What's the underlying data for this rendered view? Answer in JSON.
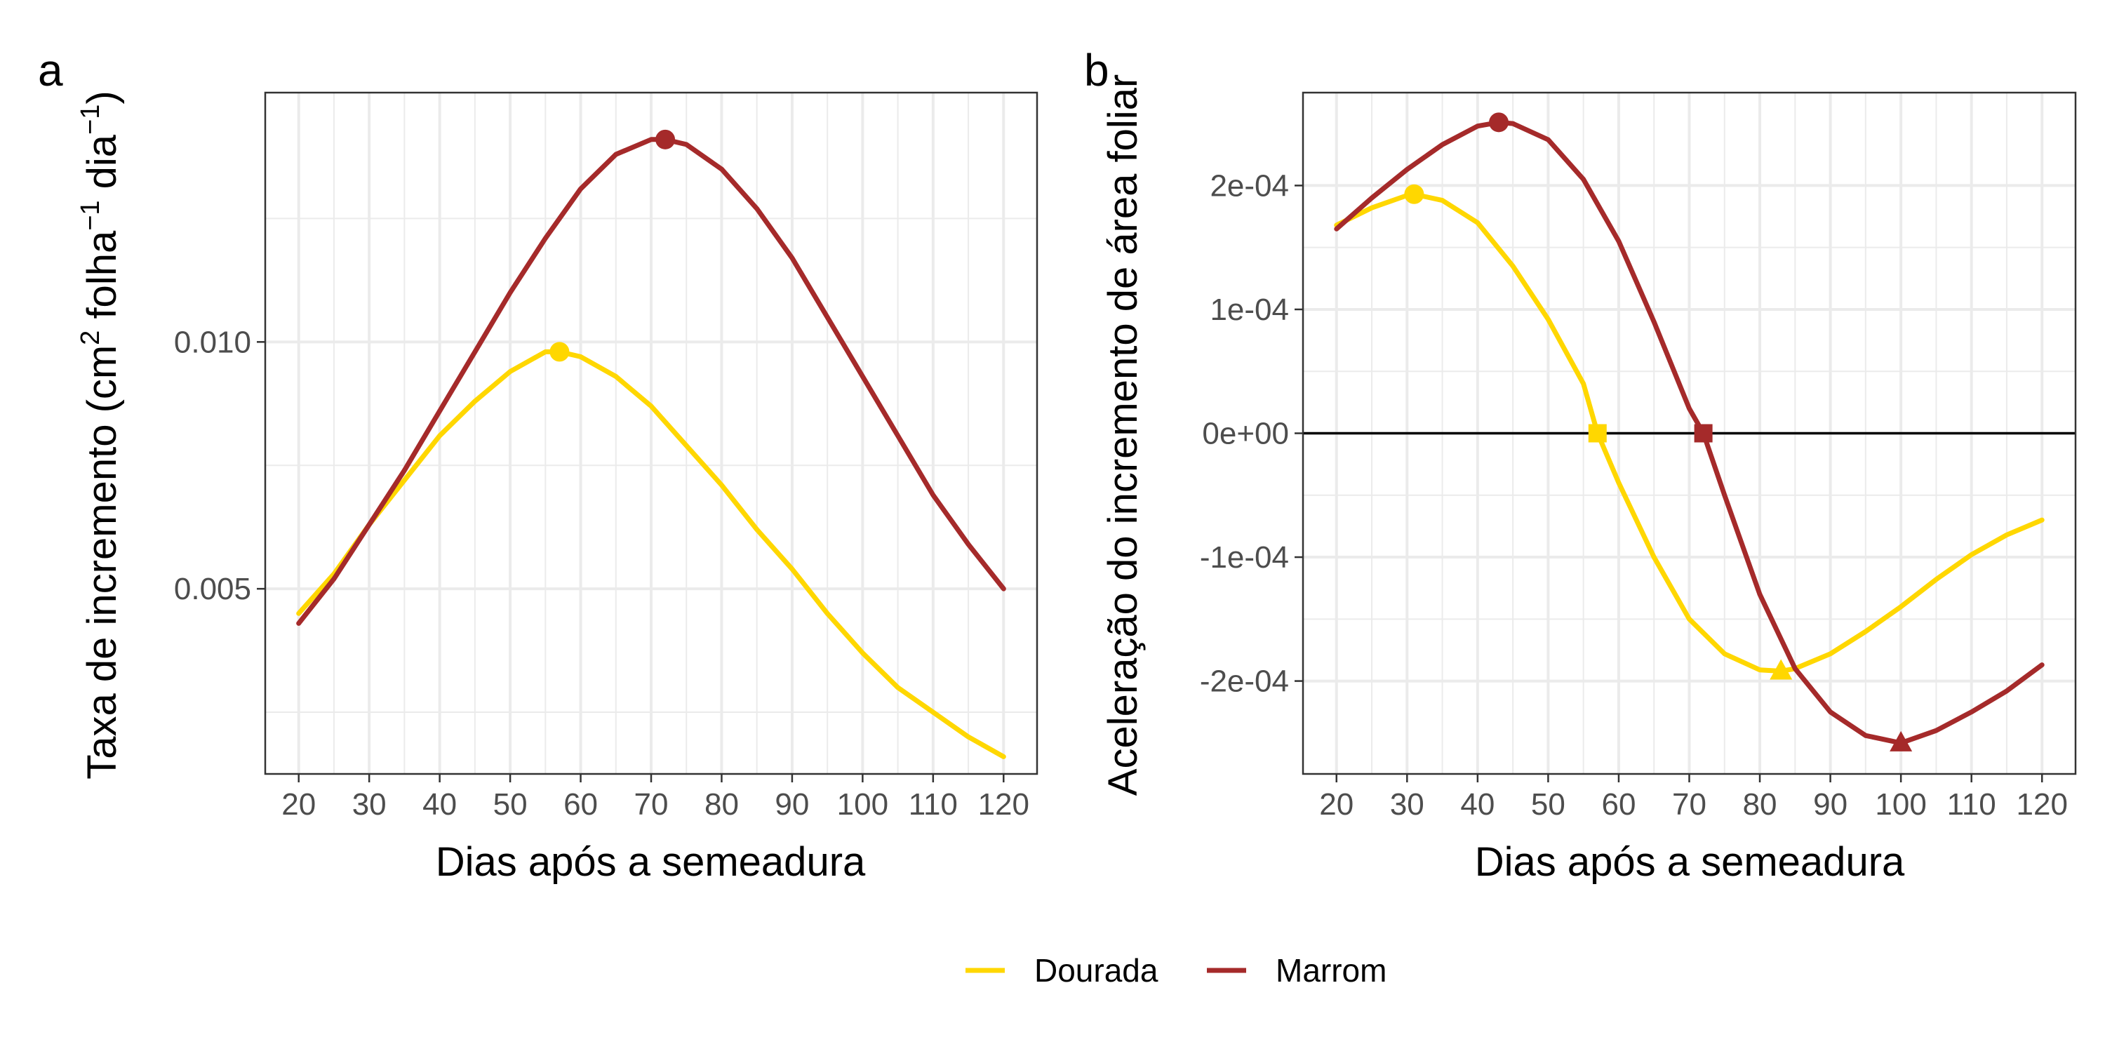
{
  "legend": {
    "items": [
      {
        "label": "Dourada",
        "color": "#FFD700"
      },
      {
        "label": "Marrom",
        "color": "#A52A2A"
      }
    ]
  },
  "chart_data": [
    {
      "panel": "a",
      "type": "line",
      "xlabel": "Dias após a semeadura",
      "ylabel_parts": [
        "Taxa de incremento (cm",
        "2",
        " folha",
        "−1",
        " dia",
        "−1",
        ")"
      ],
      "xlim": [
        15.25,
        124.75
      ],
      "ylim": [
        0.00125,
        0.01505
      ],
      "x_ticks": [
        20,
        30,
        40,
        50,
        60,
        70,
        80,
        90,
        100,
        110,
        120
      ],
      "x_tick_labels": [
        "20",
        "30",
        "40",
        "50",
        "60",
        "70",
        "80",
        "90",
        "100",
        "110",
        "120"
      ],
      "y_ticks": [
        0.005,
        0.01
      ],
      "y_tick_labels": [
        "0.005",
        "0.010"
      ],
      "grid": true,
      "series": [
        {
          "name": "Dourada",
          "color": "#FFD700",
          "x": [
            20,
            25,
            30,
            35,
            40,
            45,
            50,
            55,
            57,
            60,
            65,
            70,
            75,
            80,
            85,
            90,
            95,
            100,
            105,
            110,
            115,
            120
          ],
          "y": [
            0.0045,
            0.0053,
            0.0063,
            0.0072,
            0.0081,
            0.0088,
            0.0094,
            0.0098,
            0.0098,
            0.0097,
            0.0093,
            0.0087,
            0.0079,
            0.0071,
            0.0062,
            0.0054,
            0.0045,
            0.0037,
            0.003,
            0.0025,
            0.002,
            0.0016
          ],
          "markers": [
            {
              "x": 57,
              "y": 0.0098,
              "shape": "circle"
            }
          ]
        },
        {
          "name": "Marrom",
          "color": "#A52A2A",
          "x": [
            20,
            25,
            30,
            35,
            40,
            45,
            50,
            55,
            60,
            65,
            70,
            72,
            75,
            80,
            85,
            90,
            95,
            100,
            105,
            110,
            115,
            120
          ],
          "y": [
            0.0043,
            0.0052,
            0.0063,
            0.0074,
            0.0086,
            0.0098,
            0.011,
            0.0121,
            0.0131,
            0.0138,
            0.0141,
            0.0141,
            0.014,
            0.0135,
            0.0127,
            0.0117,
            0.0105,
            0.0093,
            0.0081,
            0.0069,
            0.0059,
            0.005
          ],
          "markers": [
            {
              "x": 72,
              "y": 0.0141,
              "shape": "circle"
            }
          ]
        }
      ]
    },
    {
      "panel": "b",
      "type": "line",
      "xlabel": "Dias após a semeadura",
      "ylabel": "Aceleração do incremento de área foliar",
      "xlim": [
        15.25,
        124.75
      ],
      "ylim": [
        -0.000275,
        0.000275
      ],
      "x_ticks": [
        20,
        30,
        40,
        50,
        60,
        70,
        80,
        90,
        100,
        110,
        120
      ],
      "x_tick_labels": [
        "20",
        "30",
        "40",
        "50",
        "60",
        "70",
        "80",
        "90",
        "100",
        "110",
        "120"
      ],
      "y_ticks": [
        -0.0002,
        -0.0001,
        0,
        0.0001,
        0.0002
      ],
      "y_tick_labels": [
        "-2e-04",
        "-1e-04",
        "0e+00",
        "1e-04",
        "2e-04"
      ],
      "grid": true,
      "hline": 0,
      "series": [
        {
          "name": "Dourada",
          "color": "#FFD700",
          "x": [
            20,
            25,
            30,
            31,
            35,
            40,
            45,
            50,
            55,
            57,
            60,
            65,
            70,
            75,
            80,
            83,
            85,
            90,
            95,
            100,
            105,
            110,
            115,
            120
          ],
          "y": [
            0.000168,
            0.000182,
            0.000192,
            0.000193,
            0.000188,
            0.00017,
            0.000135,
            9.2e-05,
            4e-05,
            0.0,
            -4e-05,
            -0.0001,
            -0.00015,
            -0.000178,
            -0.000191,
            -0.000192,
            -0.00019,
            -0.000178,
            -0.00016,
            -0.00014,
            -0.000118,
            -9.8e-05,
            -8.2e-05,
            -7e-05
          ],
          "markers": [
            {
              "x": 31,
              "y": 0.000193,
              "shape": "circle"
            },
            {
              "x": 57,
              "y": 0.0,
              "shape": "square"
            },
            {
              "x": 83,
              "y": -0.000192,
              "shape": "triangle"
            }
          ]
        },
        {
          "name": "Marrom",
          "color": "#A52A2A",
          "x": [
            20,
            25,
            30,
            35,
            40,
            43,
            45,
            50,
            55,
            60,
            65,
            70,
            72,
            75,
            80,
            85,
            90,
            95,
            100,
            105,
            110,
            115,
            120
          ],
          "y": [
            0.000165,
            0.00019,
            0.000213,
            0.000233,
            0.000248,
            0.000251,
            0.00025,
            0.000237,
            0.000205,
            0.000155,
            9e-05,
            2e-05,
            0.0,
            -5e-05,
            -0.00013,
            -0.00019,
            -0.000225,
            -0.000244,
            -0.00025,
            -0.00024,
            -0.000225,
            -0.000208,
            -0.000187
          ],
          "markers": [
            {
              "x": 43,
              "y": 0.000251,
              "shape": "circle"
            },
            {
              "x": 72,
              "y": 0.0,
              "shape": "square"
            },
            {
              "x": 100,
              "y": -0.00025,
              "shape": "triangle"
            }
          ]
        }
      ]
    }
  ],
  "panel_tags": [
    "a",
    "b"
  ]
}
